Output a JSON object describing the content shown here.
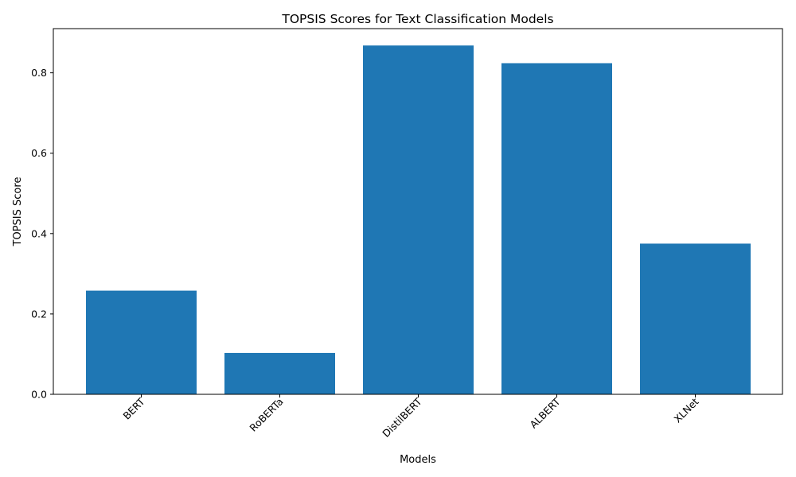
{
  "chart_data": {
    "type": "bar",
    "title": "TOPSIS Scores for Text Classification Models",
    "xlabel": "Models",
    "ylabel": "TOPSIS Score",
    "categories": [
      "BERT",
      "RoBERTa",
      "DistilBERT",
      "ALBERT",
      "XLNet"
    ],
    "values": [
      0.258,
      0.103,
      0.868,
      0.824,
      0.375
    ],
    "ylim": [
      0,
      0.91
    ],
    "yticks": [
      0.0,
      0.2,
      0.4,
      0.6,
      0.8
    ],
    "ytick_labels": [
      "0.0",
      "0.2",
      "0.4",
      "0.6",
      "0.8"
    ],
    "bar_color": "#1f77b4",
    "grid": false,
    "x_tick_rotation": "45 degrees"
  }
}
